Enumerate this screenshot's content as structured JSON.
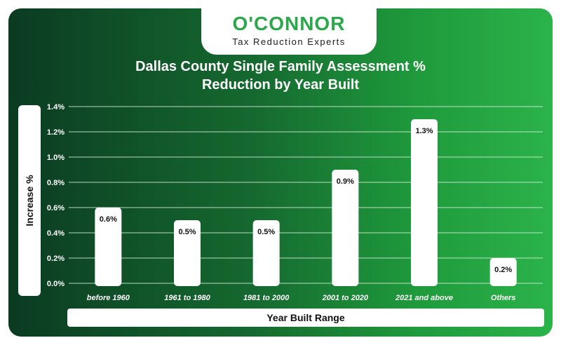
{
  "brand": {
    "name": "O'CONNOR",
    "tagline": "Tax Reduction Experts"
  },
  "chart_data": {
    "type": "bar",
    "title_line1": "Dallas County Single Family Assessment %",
    "title_line2": "Reduction by Year Built",
    "xlabel": "Year Built Range",
    "ylabel": "Increase %",
    "categories": [
      "before 1960",
      "1961 to 1980",
      "1981 to 2000",
      "2001 to 2020",
      "2021 and above",
      "Others"
    ],
    "values": [
      0.6,
      0.5,
      0.5,
      0.9,
      1.3,
      0.2
    ],
    "value_labels": [
      "0.6%",
      "0.5%",
      "0.5%",
      "0.9%",
      "1.3%",
      "0.2%"
    ],
    "ylim": [
      0,
      1.4
    ],
    "yticks": [
      0,
      0.2,
      0.4,
      0.6,
      0.8,
      1.0,
      1.2,
      1.4
    ],
    "ytick_labels": [
      "0.0%",
      "0.2%",
      "0.4%",
      "0.6%",
      "0.8%",
      "1.0%",
      "1.2%",
      "1.4%"
    ],
    "grid": true,
    "colors": {
      "bar": "#ffffff",
      "grid": "#d8eedd",
      "text": "#ffffff",
      "label_text": "#111111",
      "brand_green": "#2aa84a"
    }
  }
}
